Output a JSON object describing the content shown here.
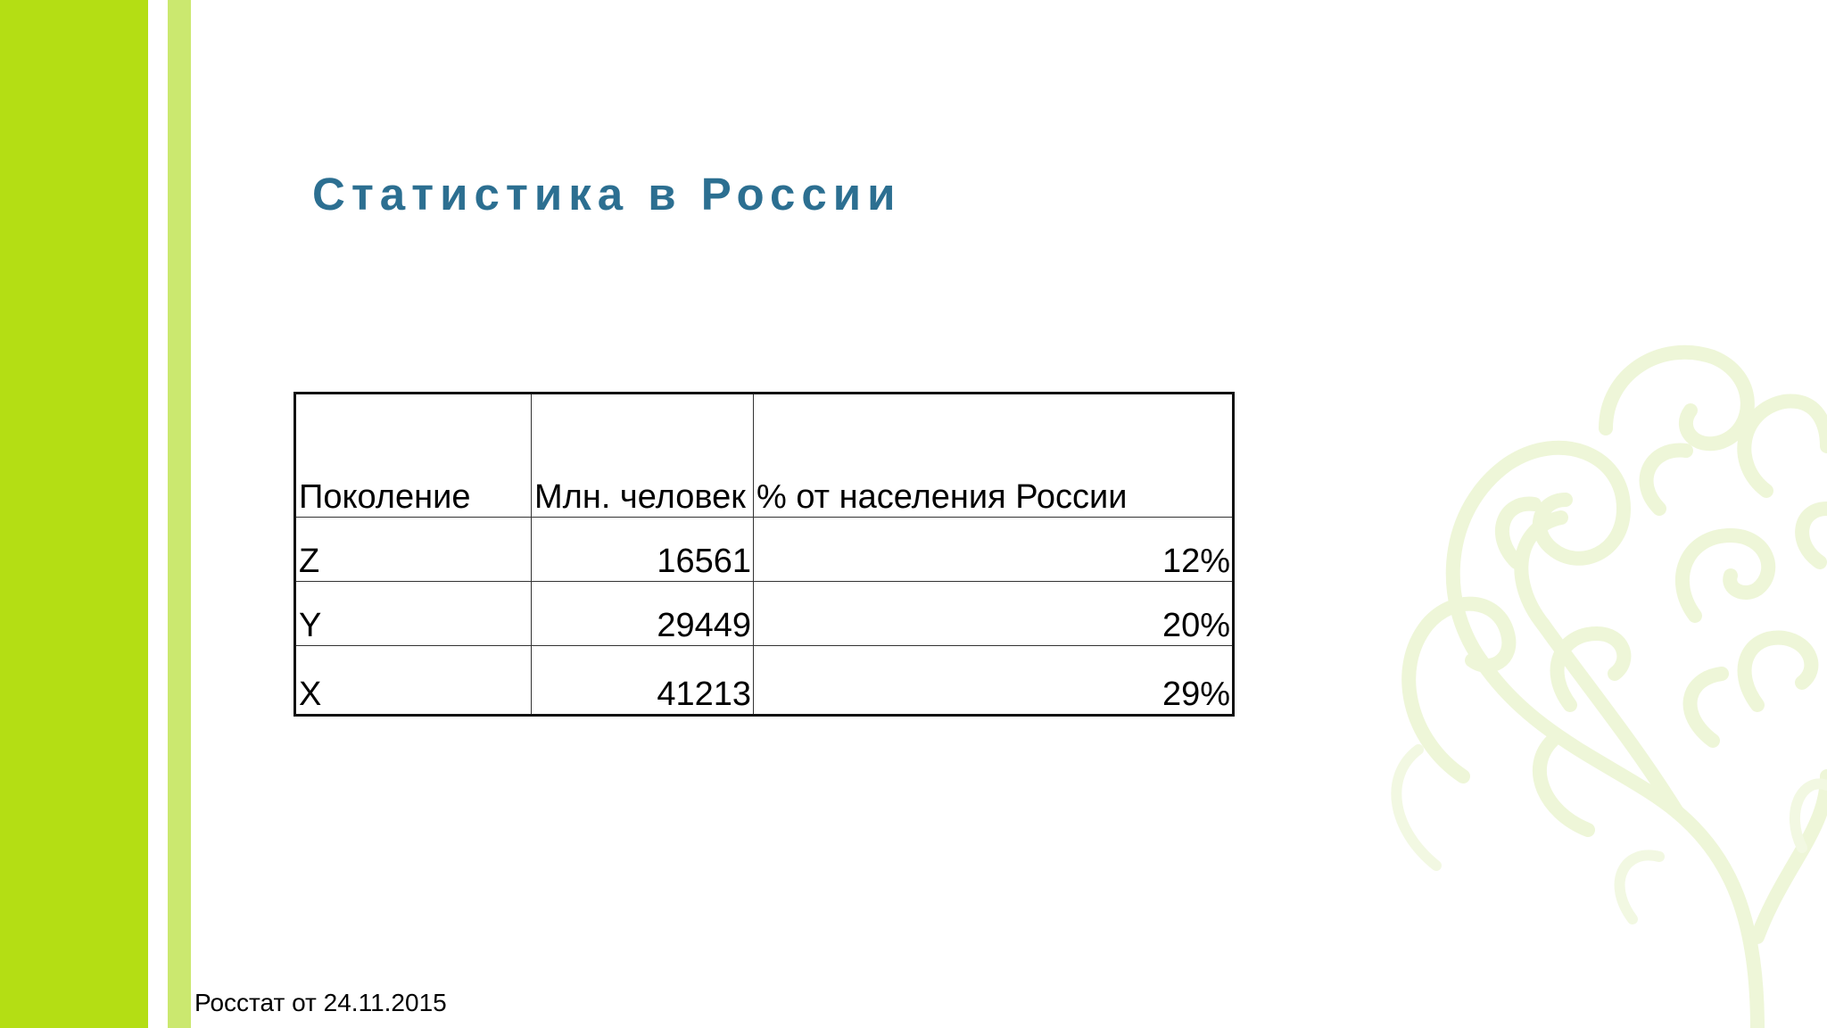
{
  "slide": {
    "title": "Статистика в России",
    "source": "Росстат от 24.11.2015"
  },
  "table": {
    "headers": [
      "Поколение",
      "Млн. человек",
      "% от населения России"
    ],
    "rows": [
      {
        "generation": "Z",
        "million_people": "16561",
        "percent": "12%"
      },
      {
        "generation": "Y",
        "million_people": "29449",
        "percent": "20%"
      },
      {
        "generation": "X",
        "million_people": "41213",
        "percent": "29%"
      }
    ]
  },
  "colors": {
    "accent_bar": "#b4de14",
    "accent_bar_light": "#cbe86f",
    "title": "#2c6f91",
    "tree": "#eef6d8"
  }
}
